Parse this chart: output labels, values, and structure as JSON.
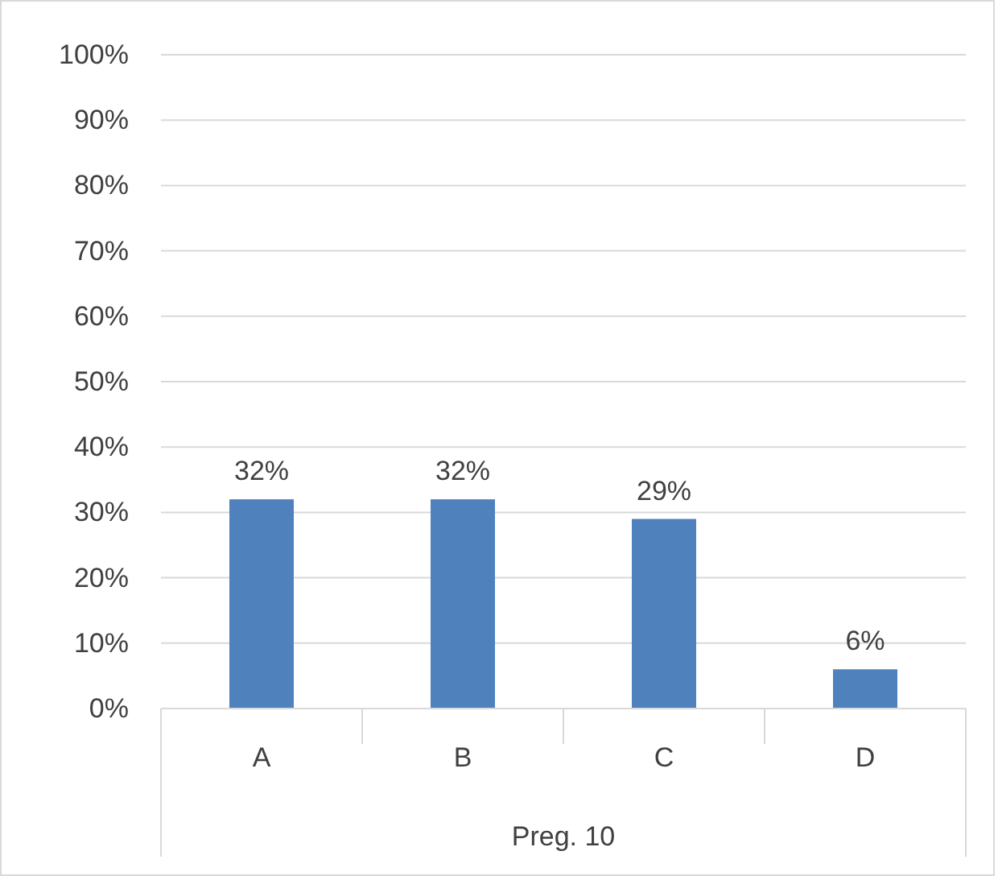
{
  "chart_data": {
    "type": "bar",
    "xlabel": "Preg. 10",
    "categories": [
      "A",
      "B",
      "C",
      "D"
    ],
    "values": [
      32,
      32,
      29,
      6
    ],
    "color": "#4f81bd",
    "value_labels": [
      "32%",
      "32%",
      "29%",
      "6%"
    ],
    "ylim": [
      0,
      100
    ],
    "yticks": [
      {
        "value": 0,
        "label": "0%"
      },
      {
        "value": 10,
        "label": "10%"
      },
      {
        "value": 20,
        "label": "20%"
      },
      {
        "value": 30,
        "label": "30%"
      },
      {
        "value": 40,
        "label": "40%"
      },
      {
        "value": 50,
        "label": "50%"
      },
      {
        "value": 60,
        "label": "60%"
      },
      {
        "value": 70,
        "label": "70%"
      },
      {
        "value": 80,
        "label": "80%"
      },
      {
        "value": 90,
        "label": "90%"
      },
      {
        "value": 100,
        "label": "100%"
      }
    ],
    "grid": "y"
  }
}
